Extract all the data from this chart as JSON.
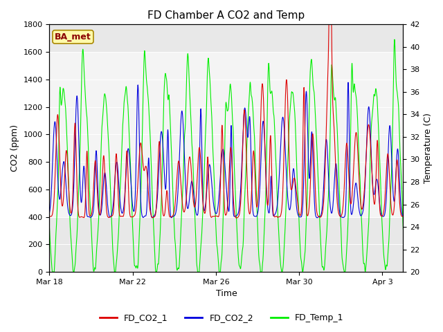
{
  "title": "FD Chamber A CO2 and Temp",
  "xlabel": "Time",
  "ylabel_left": "CO2 (ppm)",
  "ylabel_right": "Temperature (C)",
  "ylim_left": [
    0,
    1800
  ],
  "ylim_right": [
    20,
    42
  ],
  "yticks_left": [
    0,
    200,
    400,
    600,
    800,
    1000,
    1200,
    1400,
    1600,
    1800
  ],
  "yticks_right": [
    20,
    22,
    24,
    26,
    28,
    30,
    32,
    34,
    36,
    38,
    40,
    42
  ],
  "xtick_labels": [
    "Mar 18",
    "Mar 22",
    "Mar 26",
    "Mar 30",
    "Apr 3"
  ],
  "xtick_positions": [
    0,
    4,
    8,
    12,
    16
  ],
  "xlim": [
    0,
    17
  ],
  "annotation_text": "BA_met",
  "annotation_color": "#8B0000",
  "annotation_bg": "#FFFAAA",
  "shade_y_low": 400,
  "shade_y_high": 1600,
  "line_colors": {
    "FD_CO2_1": "#DD0000",
    "FD_CO2_2": "#0000DD",
    "FD_Temp_1": "#00EE00"
  },
  "line_width": 0.8,
  "plot_bg_color": "#E8E8E8",
  "shade_color": "#D0D0D0",
  "fig_bg": "#FFFFFF",
  "legend_labels": [
    "FD_CO2_1",
    "FD_CO2_2",
    "FD_Temp_1"
  ],
  "n_days": 17,
  "pts_per_day": 144
}
